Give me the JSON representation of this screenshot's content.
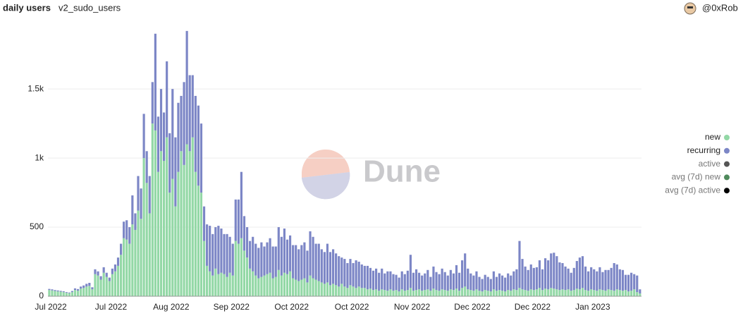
{
  "header": {
    "title": "daily users",
    "query": "v2_sudo_users",
    "author": "@0xRob"
  },
  "chart_data": {
    "type": "bar",
    "stacked": true,
    "watermark": "Dune",
    "categories": [
      "Jul 2022",
      null,
      null,
      null,
      null,
      null,
      null,
      null,
      null,
      null,
      null,
      null,
      null,
      null,
      null,
      null,
      null,
      null,
      null,
      null,
      null,
      "Jul 2022",
      null,
      null,
      null,
      null,
      null,
      null,
      null,
      null,
      null,
      null,
      null,
      null,
      null,
      null,
      null,
      null,
      null,
      null,
      null,
      null,
      "Aug 2022",
      null,
      null,
      null,
      null,
      null,
      null,
      null,
      null,
      null,
      null,
      null,
      null,
      null,
      null,
      null,
      null,
      null,
      null,
      null,
      null,
      "Sep 2022",
      null,
      null,
      null,
      null,
      null,
      null,
      null,
      null,
      null,
      null,
      null,
      null,
      null,
      null,
      null,
      null,
      null,
      null,
      null,
      null,
      "Oct 2022",
      null,
      null,
      null,
      null,
      null,
      null,
      null,
      null,
      null,
      null,
      null,
      null,
      null,
      null,
      null,
      null,
      null,
      null,
      null,
      null,
      "Oct 2022",
      null,
      null,
      null,
      null,
      null,
      null,
      null,
      null,
      null,
      null,
      null,
      null,
      null,
      null,
      null,
      null,
      null,
      null,
      null,
      null,
      "Nov 2022",
      null,
      null,
      null,
      null,
      null,
      null,
      null,
      null,
      null,
      null,
      null,
      null,
      null,
      null,
      null,
      null,
      null,
      null,
      null,
      null,
      "Dec 2022",
      null,
      null,
      null,
      null,
      null,
      null,
      null,
      null,
      null,
      null,
      null,
      null,
      null,
      null,
      null,
      null,
      null,
      null,
      null,
      null,
      "Dec 2022",
      null,
      null,
      null,
      null,
      null,
      null,
      null,
      null,
      null,
      null,
      null,
      null,
      null,
      null,
      null,
      null,
      null,
      null,
      null,
      null,
      "Jan 2023",
      null,
      null,
      null,
      null,
      null,
      null,
      null,
      null,
      null,
      null,
      null,
      null,
      null,
      null,
      null,
      null,
      null
    ],
    "series": [
      {
        "name": "new",
        "color": "#93d8a6",
        "values": [
          45,
          42,
          38,
          35,
          33,
          30,
          25,
          22,
          30,
          45,
          40,
          55,
          60,
          70,
          75,
          50,
          160,
          150,
          120,
          170,
          140,
          110,
          160,
          180,
          220,
          300,
          420,
          410,
          380,
          520,
          480,
          620,
          560,
          1000,
          820,
          600,
          1250,
          1200,
          900,
          1050,
          980,
          1150,
          750,
          850,
          650,
          900,
          1050,
          950,
          1100,
          1050,
          1150,
          900,
          800,
          750,
          400,
          220,
          180,
          150,
          200,
          160,
          170,
          160,
          140,
          170,
          150,
          400,
          380,
          420,
          330,
          280,
          200,
          180,
          150,
          130,
          140,
          150,
          160,
          170,
          130,
          140,
          190,
          150,
          170,
          160,
          180,
          130,
          120,
          110,
          120,
          130,
          100,
          150,
          130,
          120,
          110,
          100,
          90,
          100,
          80,
          90,
          80,
          70,
          90,
          70,
          60,
          80,
          70,
          60,
          70,
          60,
          60,
          50,
          55,
          45,
          50,
          40,
          50,
          45,
          40,
          50,
          40,
          45,
          35,
          50,
          40,
          45,
          60,
          40,
          45,
          50,
          40,
          45,
          50,
          40,
          55,
          45,
          40,
          50,
          45,
          40,
          50,
          45,
          55,
          40,
          60,
          70,
          50,
          45,
          40,
          50,
          40,
          35,
          45,
          40,
          35,
          50,
          40,
          45,
          40,
          35,
          45,
          40,
          50,
          45,
          60,
          50,
          45,
          40,
          50,
          45,
          50,
          60,
          45,
          55,
          50,
          60,
          55,
          50,
          45,
          50,
          45,
          50,
          40,
          45,
          55,
          50,
          60,
          45,
          40,
          50,
          45,
          40,
          50,
          45,
          40,
          50,
          45,
          40,
          50,
          45,
          40,
          45,
          35,
          40,
          50,
          30,
          20
        ]
      },
      {
        "name": "recurring",
        "color": "#7c86c6",
        "values": [
          8,
          8,
          7,
          7,
          6,
          6,
          5,
          5,
          8,
          12,
          12,
          15,
          18,
          20,
          22,
          15,
          35,
          30,
          25,
          40,
          30,
          25,
          40,
          50,
          60,
          80,
          120,
          140,
          120,
          210,
          120,
          250,
          220,
          320,
          230,
          270,
          300,
          700,
          400,
          450,
          350,
          550,
          430,
          650,
          500,
          500,
          400,
          600,
          820,
          550,
          450,
          550,
          580,
          500,
          250,
          300,
          330,
          300,
          300,
          350,
          320,
          290,
          310,
          260,
          230,
          300,
          320,
          480,
          250,
          220,
          200,
          250,
          230,
          220,
          250,
          210,
          230,
          250,
          230,
          220,
          310,
          280,
          320,
          250,
          260,
          240,
          250,
          230,
          250,
          260,
          230,
          320,
          300,
          260,
          270,
          240,
          230,
          280,
          240,
          250,
          230,
          220,
          190,
          200,
          180,
          190,
          170,
          200,
          180,
          170,
          160,
          170,
          150,
          140,
          150,
          130,
          150,
          120,
          140,
          130,
          120,
          110,
          100,
          130,
          120,
          140,
          240,
          130,
          150,
          120,
          110,
          120,
          140,
          100,
          160,
          130,
          120,
          150,
          130,
          110,
          140,
          120,
          170,
          130,
          200,
          240,
          150,
          120,
          110,
          130,
          100,
          90,
          110,
          100,
          90,
          130,
          100,
          120,
          110,
          100,
          120,
          110,
          130,
          150,
          340,
          220,
          170,
          150,
          180,
          160,
          160,
          200,
          150,
          220,
          210,
          250,
          260,
          240,
          200,
          190,
          170,
          150,
          130,
          160,
          200,
          230,
          230,
          170,
          140,
          160,
          150,
          140,
          160,
          130,
          150,
          140,
          160,
          200,
          180,
          150,
          150,
          110,
          120,
          130,
          110,
          120,
          30
        ]
      }
    ],
    "other_legend_entries": [
      {
        "name": "active",
        "color": "#555555"
      },
      {
        "name": "avg (7d) new",
        "color": "#4f8a5c"
      },
      {
        "name": "avg (7d) active",
        "color": "#000000"
      }
    ],
    "ylim": [
      0,
      1950
    ],
    "yticks": [
      0,
      500,
      {
        "value": 1000,
        "label": "1k"
      },
      {
        "value": 1500,
        "label": "1.5k"
      }
    ],
    "grid": true,
    "legend": "right"
  }
}
